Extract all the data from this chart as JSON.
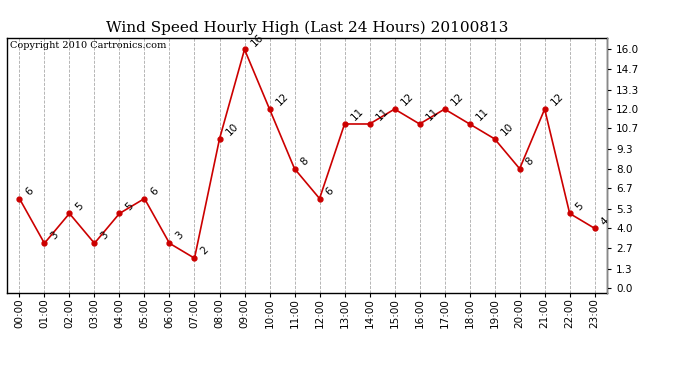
{
  "title": "Wind Speed Hourly High (Last 24 Hours) 20100813",
  "copyright": "Copyright 2010 Cartronics.com",
  "hours": [
    "00:00",
    "01:00",
    "02:00",
    "03:00",
    "04:00",
    "05:00",
    "06:00",
    "07:00",
    "08:00",
    "09:00",
    "10:00",
    "11:00",
    "12:00",
    "13:00",
    "14:00",
    "15:00",
    "16:00",
    "17:00",
    "18:00",
    "19:00",
    "20:00",
    "21:00",
    "22:00",
    "23:00"
  ],
  "values": [
    6,
    3,
    5,
    3,
    5,
    6,
    3,
    2,
    10,
    16,
    12,
    8,
    6,
    11,
    11,
    12,
    11,
    12,
    11,
    10,
    8,
    12,
    5,
    4
  ],
  "line_color": "#cc0000",
  "marker_color": "#cc0000",
  "bg_color": "#ffffff",
  "grid_color": "#aaaaaa",
  "yticks": [
    0.0,
    1.3,
    2.7,
    4.0,
    5.3,
    6.7,
    8.0,
    9.3,
    10.7,
    12.0,
    13.3,
    14.7,
    16.0
  ],
  "ylim": [
    -0.3,
    16.8
  ],
  "title_fontsize": 11,
  "label_fontsize": 7.5,
  "annotation_fontsize": 7.5,
  "copyright_fontsize": 7
}
